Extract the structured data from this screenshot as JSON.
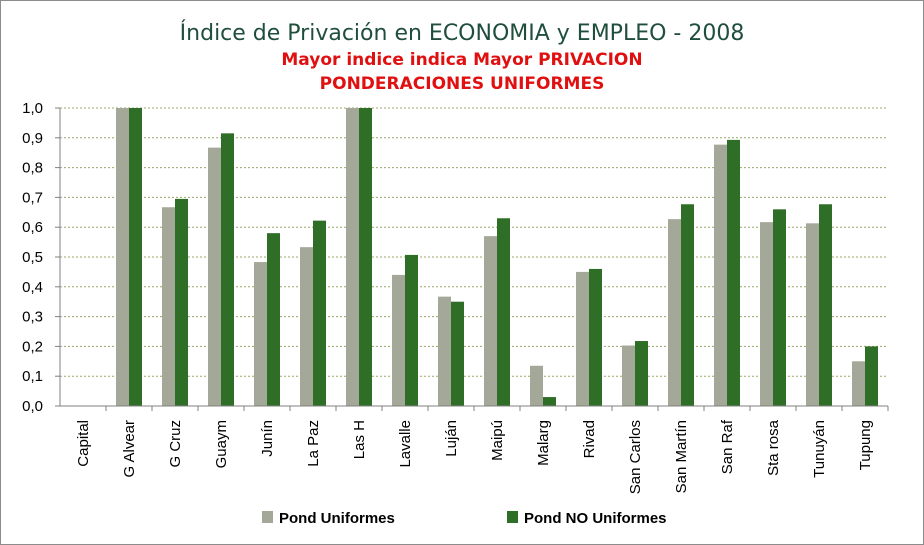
{
  "chart_data": {
    "type": "bar",
    "title": "Índice de Privación en ECONOMIA y EMPLEO - 2008",
    "subtitle": [
      "Mayor indice indica Mayor PRIVACION",
      "PONDERACIONES UNIFORMES"
    ],
    "xlabel": "",
    "ylabel": "",
    "ylim": [
      0,
      1
    ],
    "yticks": [
      "0,0",
      "0,1",
      "0,2",
      "0,3",
      "0,4",
      "0,5",
      "0,6",
      "0,7",
      "0,8",
      "0,9",
      "1,0"
    ],
    "grid": true,
    "legend_position": "bottom",
    "categories": [
      "Capital",
      "G Alvear",
      "G Cruz",
      "Guaym",
      "Junín",
      "La Paz",
      "Las H",
      "Lavalle",
      "Luján",
      "Maipú",
      "Malarg",
      "Rivad",
      "San Carlos",
      "San Martín",
      "San Raf",
      "Sta rosa",
      "Tunuyán",
      "Tupung"
    ],
    "series": [
      {
        "name": "Pond Uniformes",
        "color": "#a3a898",
        "values": [
          0.0,
          1.0,
          0.667,
          0.867,
          0.483,
          0.533,
          1.0,
          0.44,
          0.367,
          0.57,
          0.135,
          0.45,
          0.203,
          0.627,
          0.877,
          0.617,
          0.613,
          0.15
        ]
      },
      {
        "name": "Pond NO Uniformes",
        "color": "#2f6e27",
        "values": [
          0.0,
          1.0,
          0.695,
          0.915,
          0.58,
          0.622,
          1.0,
          0.507,
          0.35,
          0.63,
          0.03,
          0.46,
          0.218,
          0.677,
          0.893,
          0.66,
          0.677,
          0.2
        ]
      }
    ]
  },
  "colors": {
    "title": "#1f4e3d",
    "subtitle": "#e01010",
    "gridline": "#9aa86a",
    "axis": "#808080"
  }
}
